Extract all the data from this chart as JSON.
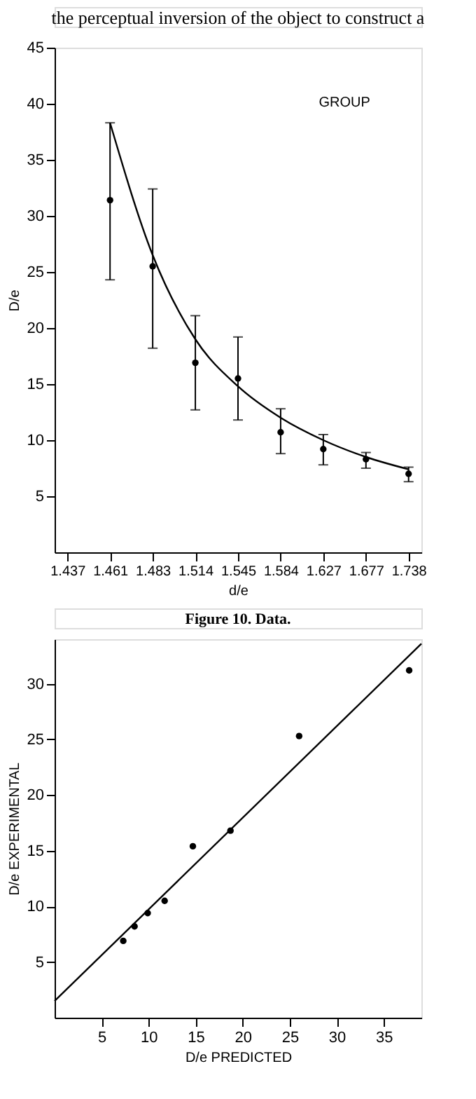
{
  "chart_data": [
    {
      "type": "scatter",
      "title": "GROUP",
      "xlabel": "d/e",
      "ylabel": "D/e",
      "annotations": [
        "the perceptual inversion of the object to construct a",
        "Figure 10. Data."
      ],
      "categories": [
        "1.437",
        "1.461",
        "1.483",
        "1.514",
        "1.545",
        "1.584",
        "1.627",
        "1.677",
        "1.738"
      ],
      "ylim": [
        0,
        45
      ],
      "yticks": [
        5,
        10,
        15,
        20,
        25,
        30,
        35,
        40,
        45
      ],
      "grid": false,
      "series": [
        {
          "type": "scatter",
          "marker": "circle",
          "color": "#000000",
          "values": [
            null,
            31.4,
            25.5,
            16.9,
            15.5,
            10.7,
            9.2,
            8.3,
            7.0
          ],
          "errors": [
            null,
            [
              24.3,
              38.3
            ],
            [
              18.2,
              32.4
            ],
            [
              12.7,
              21.1
            ],
            [
              11.8,
              19.2
            ],
            [
              8.8,
              12.8
            ],
            [
              7.8,
              10.5
            ],
            [
              7.5,
              8.9
            ],
            [
              6.3,
              7.6
            ]
          ]
        },
        {
          "type": "line",
          "marker": "none",
          "color": "#000000",
          "values": [
            null,
            38.3,
            26.5,
            19.0,
            14.8,
            12.0,
            10.0,
            8.5,
            7.4
          ]
        }
      ]
    },
    {
      "type": "scatter",
      "xlabel": "D/e PREDICTED",
      "ylabel": "D/e EXPERIMENTAL",
      "xlim": [
        0,
        39
      ],
      "xticks": [
        5,
        10,
        15,
        20,
        25,
        30,
        35
      ],
      "ylim": [
        0,
        34
      ],
      "yticks": [
        5,
        10,
        15,
        20,
        25,
        30
      ],
      "grid": false,
      "series": [
        {
          "type": "scatter",
          "marker": "circle",
          "color": "#000000",
          "x": [
            7.3,
            8.5,
            9.9,
            11.7,
            14.7,
            18.7,
            26.0,
            37.7
          ],
          "values": [
            6.9,
            8.2,
            9.4,
            10.5,
            15.4,
            16.8,
            25.3,
            31.2
          ]
        },
        {
          "type": "line",
          "marker": "none",
          "color": "#000000",
          "x": [
            0,
            39
          ],
          "values": [
            1.5,
            33.6
          ]
        }
      ]
    }
  ]
}
